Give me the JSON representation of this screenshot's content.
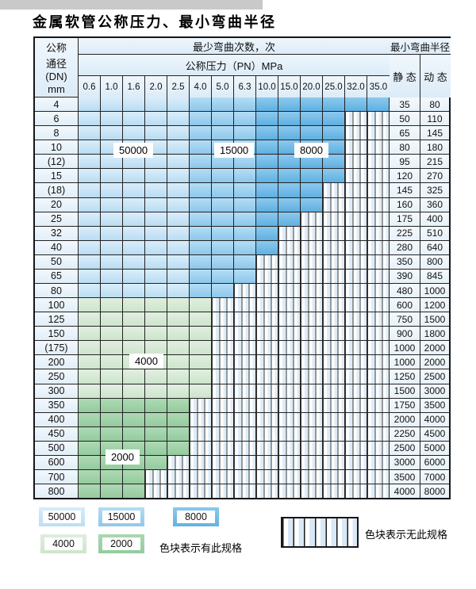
{
  "page": {
    "title": "金属软管公称压力、最小弯曲半径"
  },
  "table": {
    "header": {
      "dn_lines": [
        "公称",
        "通径",
        "(DN)",
        "mm"
      ],
      "bend_cycles_label": "最少弯曲次数，次",
      "pressure_label": "公称压力（PN）MPa",
      "pressure_columns": [
        "0.6",
        "1.0",
        "1.6",
        "2.0",
        "2.5",
        "4.0",
        "5.0",
        "6.3",
        "10.0",
        "15.0",
        "20.0",
        "25.0",
        "32.0",
        "35.0"
      ],
      "bend_radius_label": "最小弯曲半径",
      "static_label": "静 态",
      "dynamic_label": "动 态"
    },
    "shade_bands": {
      "blue_light_cols": 5,
      "blue_mid_cols": 3,
      "blue_light_value": "50000",
      "blue_mid_value": "15000",
      "blue_dark_value": "8000",
      "green_light_value": "4000",
      "green_dark_value": "2000"
    },
    "rows": [
      {
        "dn": "4",
        "colored": 14,
        "family": "blue",
        "static": "35",
        "dynamic": "80"
      },
      {
        "dn": "6",
        "colored": 12,
        "family": "blue",
        "static": "50",
        "dynamic": "110"
      },
      {
        "dn": "8",
        "colored": 12,
        "family": "blue",
        "static": "65",
        "dynamic": "145"
      },
      {
        "dn": "10",
        "colored": 12,
        "family": "blue",
        "static": "80",
        "dynamic": "180"
      },
      {
        "dn": "(12)",
        "colored": 12,
        "family": "blue",
        "static": "95",
        "dynamic": "215"
      },
      {
        "dn": "15",
        "colored": 12,
        "family": "blue",
        "static": "120",
        "dynamic": "270"
      },
      {
        "dn": "(18)",
        "colored": 11,
        "family": "blue",
        "static": "145",
        "dynamic": "325"
      },
      {
        "dn": "20",
        "colored": 11,
        "family": "blue",
        "static": "160",
        "dynamic": "360"
      },
      {
        "dn": "25",
        "colored": 10,
        "family": "blue",
        "static": "175",
        "dynamic": "400"
      },
      {
        "dn": "32",
        "colored": 9,
        "family": "blue",
        "static": "225",
        "dynamic": "510"
      },
      {
        "dn": "40",
        "colored": 9,
        "family": "blue",
        "static": "280",
        "dynamic": "640"
      },
      {
        "dn": "50",
        "colored": 8,
        "family": "blue",
        "static": "350",
        "dynamic": "800"
      },
      {
        "dn": "65",
        "colored": 8,
        "family": "blue",
        "static": "390",
        "dynamic": "845"
      },
      {
        "dn": "80",
        "colored": 7,
        "family": "blue",
        "static": "480",
        "dynamic": "1000"
      },
      {
        "dn": "100",
        "colored": 6,
        "family": "green1",
        "static": "600",
        "dynamic": "1200"
      },
      {
        "dn": "125",
        "colored": 6,
        "family": "green1",
        "static": "750",
        "dynamic": "1500"
      },
      {
        "dn": "150",
        "colored": 6,
        "family": "green1",
        "static": "900",
        "dynamic": "1800"
      },
      {
        "dn": "(175)",
        "colored": 6,
        "family": "green1",
        "static": "1000",
        "dynamic": "2000"
      },
      {
        "dn": "200",
        "colored": 6,
        "family": "green1",
        "static": "1000",
        "dynamic": "2000"
      },
      {
        "dn": "250",
        "colored": 6,
        "family": "green1",
        "static": "1250",
        "dynamic": "2500"
      },
      {
        "dn": "300",
        "colored": 6,
        "family": "green1",
        "static": "1500",
        "dynamic": "3000"
      },
      {
        "dn": "350",
        "colored": 5,
        "family": "green2",
        "static": "1750",
        "dynamic": "3500"
      },
      {
        "dn": "400",
        "colored": 5,
        "family": "green2",
        "static": "2000",
        "dynamic": "4000"
      },
      {
        "dn": "450",
        "colored": 5,
        "family": "green2",
        "static": "2250",
        "dynamic": "4500"
      },
      {
        "dn": "500",
        "colored": 5,
        "family": "green2",
        "static": "2500",
        "dynamic": "5000"
      },
      {
        "dn": "600",
        "colored": 4,
        "family": "green2",
        "static": "3000",
        "dynamic": "6000"
      },
      {
        "dn": "700",
        "colored": 3,
        "family": "green2",
        "static": "3500",
        "dynamic": "7000"
      },
      {
        "dn": "800",
        "colored": 3,
        "family": "green2",
        "static": "4000",
        "dynamic": "8000"
      }
    ]
  },
  "region_labels": {
    "r50000": "50000",
    "r15000": "15000",
    "r8000": "8000",
    "r4000": "4000",
    "r2000": "2000"
  },
  "legend": {
    "swatches": [
      {
        "label": "50000",
        "color_class": "lg-b1",
        "color": "#bcdef3"
      },
      {
        "label": "15000",
        "color_class": "lg-b2",
        "color": "#90c8ea"
      },
      {
        "label": "8000",
        "color_class": "lg-b3",
        "color": "#62b2e2"
      },
      {
        "label": "4000",
        "color_class": "lg-g1",
        "color": "#cde5cc"
      },
      {
        "label": "2000",
        "color_class": "lg-g2",
        "color": "#94cb9e"
      }
    ],
    "has_spec_note": "色块表示有此规格",
    "no_spec_note": "色块表示无此规格"
  }
}
